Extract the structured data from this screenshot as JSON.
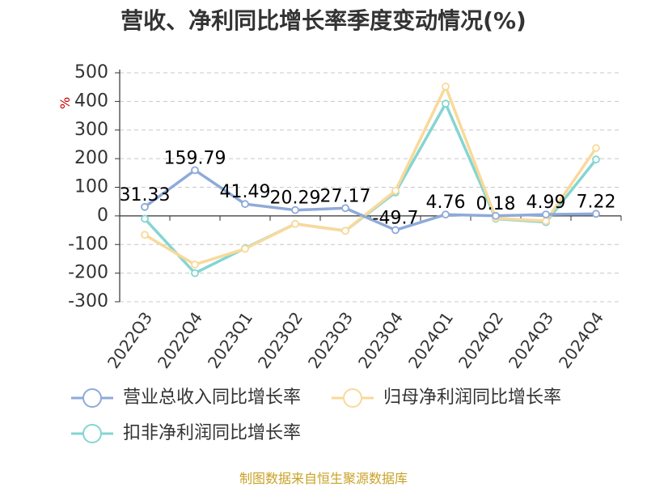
{
  "title": "营收、净利同比增长率季度变动情况(%)",
  "source": "制图数据来自恒生聚源数据库",
  "chart_data": {
    "type": "line",
    "title": "营收、净利同比增长率季度变动情况(%)",
    "ylabel": "%",
    "ylim": [
      -300,
      500
    ],
    "yticks": [
      500,
      400,
      300,
      200,
      100,
      0,
      -100,
      -200,
      -300
    ],
    "grid": true,
    "legend_position": "bottom-left",
    "categories": [
      "2022Q3",
      "2022Q4",
      "2023Q1",
      "2023Q2",
      "2023Q3",
      "2023Q4",
      "2024Q1",
      "2024Q2",
      "2024Q3",
      "2024Q4"
    ],
    "series": [
      {
        "name": "营业总收入同比增长率",
        "color": "#8eaad9",
        "values": [
          31.33,
          159.79,
          41.49,
          20.29,
          27.17,
          -49.7,
          4.76,
          0.18,
          4.99,
          7.22
        ],
        "labels": [
          "31.33",
          "159.79",
          "41.49",
          "20.29",
          "27.17",
          "-49.7",
          "4.76",
          "0.18",
          "4.99",
          "7.22"
        ]
      },
      {
        "name": "归母净利润同比增长率",
        "color": "#f9d99a",
        "values": [
          -66,
          -170,
          -115,
          -28,
          -52,
          88,
          452,
          -8,
          -18,
          237
        ]
      },
      {
        "name": "扣非净利润同比增长率",
        "color": "#84d5d3",
        "values": [
          -10,
          -200,
          -113,
          -28,
          -52,
          82,
          392,
          -10,
          -22,
          197
        ]
      }
    ]
  }
}
